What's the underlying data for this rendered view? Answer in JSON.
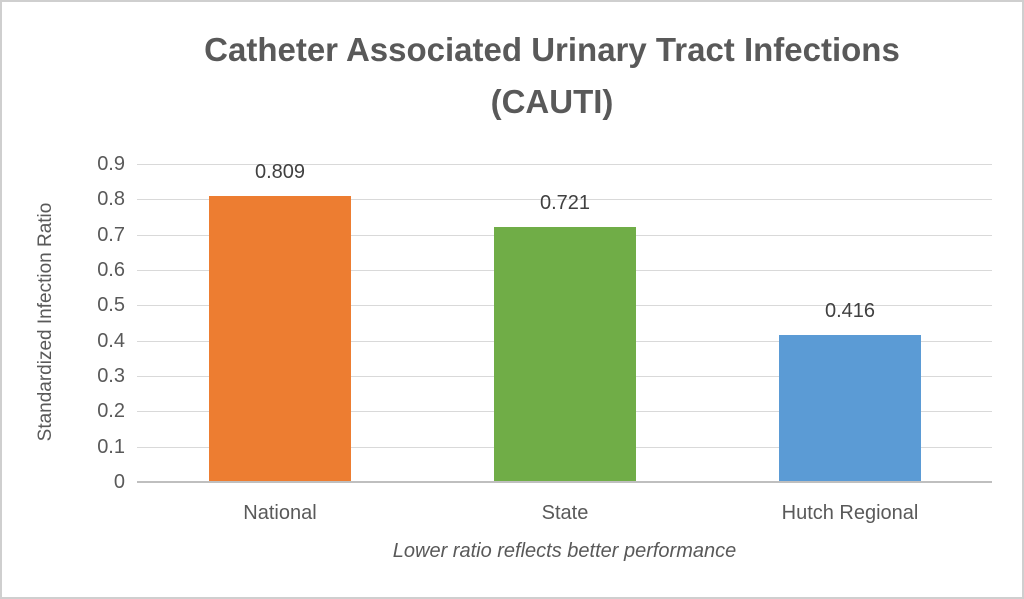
{
  "frame": {
    "background": "#ffffff",
    "border_color": "#cfcfcf"
  },
  "chart_data": {
    "type": "bar",
    "title": "Catheter Associated Urinary Tract Infections (CAUTI)",
    "ylabel": "Standardized Infection Ratio",
    "xlabel": "",
    "note": "Lower ratio reflects better performance",
    "categories": [
      "National",
      "State",
      "Hutch Regional"
    ],
    "values": [
      0.809,
      0.721,
      0.416
    ],
    "data_labels": [
      "0.809",
      "0.721",
      "0.416"
    ],
    "bar_colors": [
      "#ED7D31",
      "#70AD47",
      "#5B9BD5"
    ],
    "ylim": [
      0,
      0.9
    ],
    "ytick_step": 0.1,
    "ytick_labels": [
      "0.9",
      "0.8",
      "0.7",
      "0.6",
      "0.5",
      "0.4",
      "0.3",
      "0.2",
      "0.1",
      "0"
    ],
    "grid": true,
    "legend": "none",
    "colors": {
      "title_text": "#595959",
      "axis_text": "#595959",
      "data_label_text": "#404040",
      "gridline": "#d9d9d9",
      "axis_line": "#bfbfbf"
    }
  }
}
